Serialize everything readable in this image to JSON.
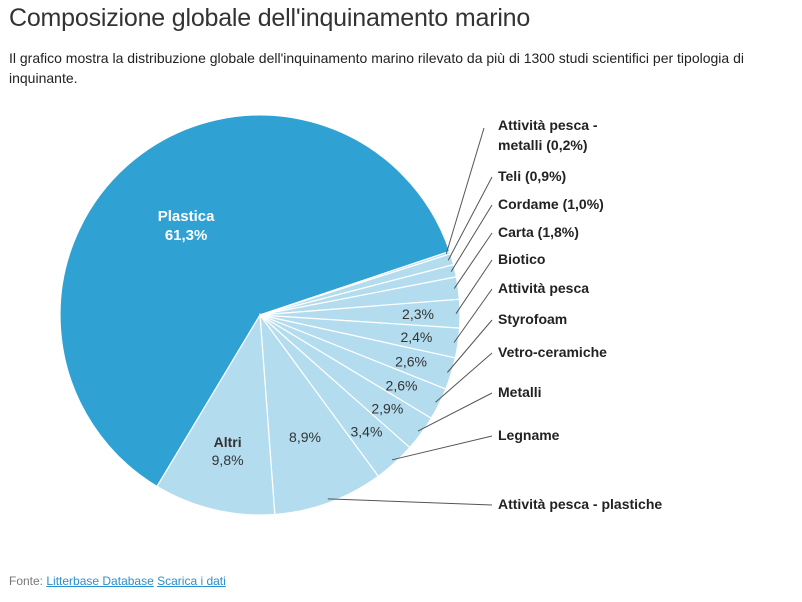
{
  "header": {
    "title": "Composizione globale dell'inquinamento marino",
    "subtitle": "Il grafico mostra la distribuzione globale dell'inquinamento marino rilevato da più di 1300 studi scientifici per tipologia di inquinante."
  },
  "footer": {
    "prefix": "Fonte: ",
    "source_link": "Litterbase Database",
    "download_link": "Scarica i dati"
  },
  "colors": {
    "primary": "#2fa1d3",
    "secondary": "#b3dcef",
    "leader": "#555555"
  },
  "chart_data": {
    "type": "pie",
    "title": "Composizione globale dell'inquinamento marino",
    "slices": [
      {
        "label": "Plastica",
        "value": 61.3,
        "display": "61,3%"
      },
      {
        "label": "Attività pesca - metalli",
        "value": 0.2,
        "display": "(0,2%)"
      },
      {
        "label": "Teli",
        "value": 0.9,
        "display": "(0,9%)"
      },
      {
        "label": "Cordame",
        "value": 1.0,
        "display": "(1,0%)"
      },
      {
        "label": "Carta",
        "value": 1.8,
        "display": "(1,8%)"
      },
      {
        "label": "Biotico",
        "value": 2.3,
        "display": "2,3%"
      },
      {
        "label": "Attività pesca",
        "value": 2.4,
        "display": "2,4%"
      },
      {
        "label": "Styrofoam",
        "value": 2.6,
        "display": "2,6%"
      },
      {
        "label": "Vetro-ceramiche",
        "value": 2.6,
        "display": "2,6%"
      },
      {
        "label": "Metalli",
        "value": 2.9,
        "display": "2,9%"
      },
      {
        "label": "Legname",
        "value": 3.4,
        "display": "3,4%"
      },
      {
        "label": "Attività pesca - plastiche",
        "value": 8.9,
        "display": "8,9%"
      },
      {
        "label": "Altri",
        "value": 9.8,
        "display": "9,8%"
      }
    ]
  }
}
